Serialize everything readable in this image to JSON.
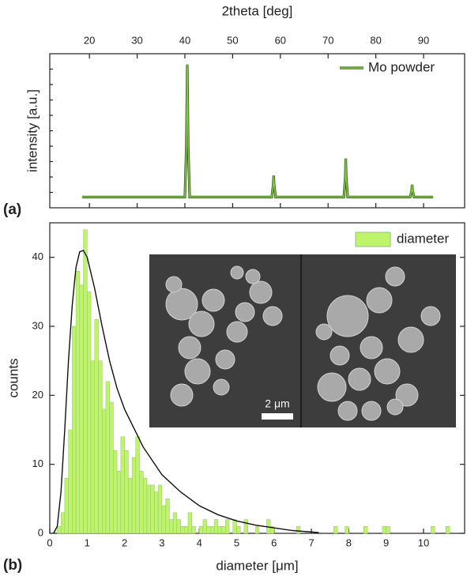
{
  "chart_data": [
    {
      "type": "line",
      "panel_label": "(a)",
      "xlabel": "2theta [deg]",
      "ylabel": "intensity [a.u.]",
      "xlim": [
        11.7,
        98.6
      ],
      "xticks": [
        20,
        30,
        40,
        50,
        60,
        70,
        80,
        90
      ],
      "ylim": [
        0,
        100
      ],
      "legend": "upper right",
      "x": [
        18.5,
        40.0,
        40.3,
        40.5,
        40.7,
        41.0,
        58.2,
        58.5,
        58.6,
        58.7,
        59.0,
        73.3,
        73.6,
        73.7,
        73.8,
        74.1,
        87.2,
        87.5,
        87.6,
        87.7,
        88.0,
        92.0
      ],
      "series": [
        {
          "name": "Mo powder",
          "color": "#7dc940",
          "values": [
            7,
            7,
            40,
            93,
            40,
            7,
            7,
            15,
            21,
            15,
            7,
            7,
            20,
            32,
            20,
            7,
            7,
            11,
            15,
            11,
            7,
            7
          ]
        }
      ]
    },
    {
      "type": "histogram",
      "panel_label": "(b)",
      "xlabel": "diameter [μm]",
      "ylabel": "counts",
      "xlim": [
        0,
        11.1
      ],
      "xticks": [
        0,
        1,
        2,
        3,
        4,
        5,
        6,
        7,
        8,
        9,
        10
      ],
      "ylim": [
        0,
        45
      ],
      "yticks": [
        0,
        10,
        20,
        30,
        40
      ],
      "legend": "upper right",
      "inset_scale_label": "2 μm",
      "series": [
        {
          "name": "diameter",
          "color": "#bdf46a"
        }
      ],
      "bins": [
        0.1,
        0.2,
        0.3,
        0.4,
        0.5,
        0.6,
        0.7,
        0.8,
        0.9,
        1.0,
        1.1,
        1.2,
        1.3,
        1.4,
        1.5,
        1.6,
        1.7,
        1.8,
        1.9,
        2.0,
        2.1,
        2.2,
        2.3,
        2.4,
        2.5,
        2.6,
        2.7,
        2.8,
        2.9,
        3.0,
        3.1,
        3.2,
        3.3,
        3.4,
        3.5,
        3.6,
        3.7,
        3.8,
        3.9,
        4.0,
        4.1,
        4.2,
        4.3,
        4.4,
        4.5,
        4.6,
        4.7,
        4.8,
        4.9,
        5.0,
        5.1,
        5.2,
        5.3,
        5.4,
        5.5,
        5.6,
        5.7,
        5.8,
        5.9,
        6.0,
        6.1,
        6.2,
        6.3,
        6.4,
        6.5,
        6.6,
        6.7,
        6.8,
        6.9,
        7.0,
        7.1,
        7.2,
        7.3,
        7.4,
        7.5,
        7.6,
        7.7,
        7.8,
        7.9,
        8.0,
        8.1,
        8.2,
        8.3,
        8.4,
        8.5,
        8.6,
        8.7,
        8.8,
        8.9,
        9.0,
        9.1,
        9.2,
        9.3,
        9.4,
        9.5,
        9.6,
        9.7,
        9.8,
        9.9,
        10.0,
        10.1,
        10.2,
        10.3,
        10.4,
        10.5,
        10.6,
        10.7,
        10.8
      ],
      "values": [
        0,
        1,
        3,
        8,
        15,
        30,
        38,
        36,
        44,
        35,
        25,
        31,
        25,
        18,
        22,
        19,
        12,
        9,
        14,
        12,
        8,
        11,
        14,
        9,
        8,
        7,
        7,
        6,
        7,
        4,
        5,
        2,
        3,
        2,
        1,
        1,
        3,
        1,
        0,
        1,
        2,
        1,
        1,
        2,
        1,
        1,
        2,
        0,
        2,
        1,
        0,
        2,
        0,
        0,
        1,
        0,
        0,
        2,
        1,
        0,
        0,
        0,
        0,
        0,
        0,
        1,
        0,
        0,
        0,
        0,
        0,
        0,
        0,
        0,
        0,
        1,
        0,
        0,
        1,
        0,
        0,
        0,
        0,
        1,
        0,
        0,
        0,
        0,
        1,
        1,
        0,
        0,
        0,
        0,
        0,
        0,
        0,
        0,
        0,
        0,
        0,
        1,
        0,
        0,
        0,
        1,
        0
      ],
      "curve": {
        "color": "#111111",
        "x": [
          0.1,
          0.2,
          0.3,
          0.4,
          0.5,
          0.6,
          0.7,
          0.8,
          0.9,
          1.0,
          1.2,
          1.4,
          1.6,
          1.8,
          2.0,
          2.5,
          3.0,
          3.5,
          4.0,
          4.5,
          5.0,
          5.5,
          6.0,
          6.5,
          7.0,
          7.2
        ],
        "y": [
          0,
          1,
          6,
          15,
          25,
          33,
          38.5,
          40.8,
          41,
          40,
          35.5,
          30,
          25,
          21,
          18,
          12.5,
          8.5,
          6,
          4,
          2.7,
          1.8,
          1.2,
          0.8,
          0.4,
          0.2,
          0.1
        ]
      }
    }
  ]
}
